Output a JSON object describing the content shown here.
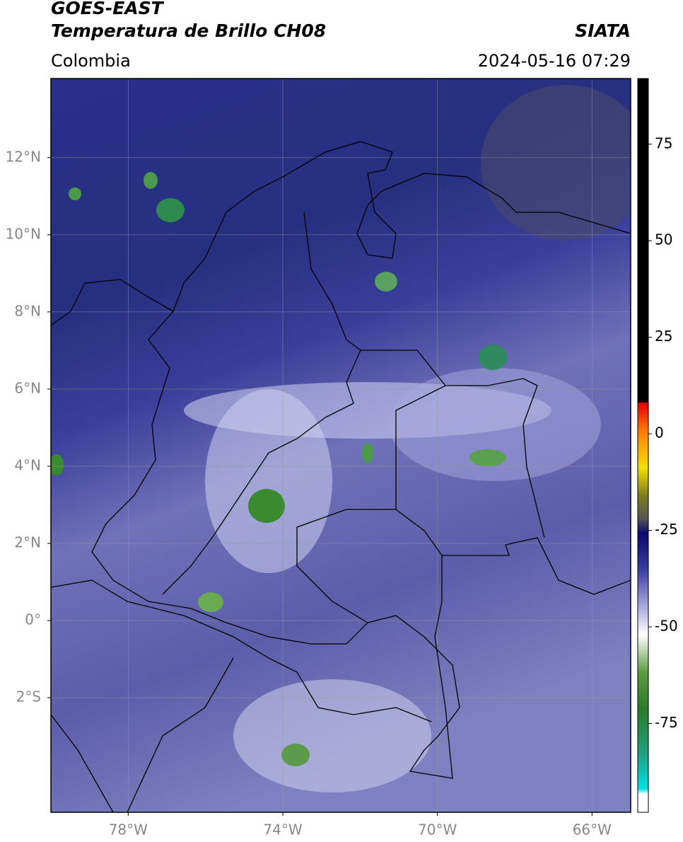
{
  "header": {
    "title_line1": "GOES-EAST",
    "title_line2": "Temperatura de Brillo CH08",
    "agency": "SIATA",
    "region": "Colombia",
    "timestamp": "2024-05-16 07:29"
  },
  "map": {
    "lat_lim": [
      -4.97,
      14.05
    ],
    "lon_lim": [
      -80,
      -65
    ],
    "lat_ticks": [
      {
        "value": 12,
        "label": "12°N"
      },
      {
        "value": 10,
        "label": "10°N"
      },
      {
        "value": 8,
        "label": "8°N"
      },
      {
        "value": 6,
        "label": "6°N"
      },
      {
        "value": 4,
        "label": "4°N"
      },
      {
        "value": 2,
        "label": "2°N"
      },
      {
        "value": 0,
        "label": "0°"
      },
      {
        "value": -2,
        "label": "2°S"
      }
    ],
    "lon_ticks": [
      {
        "value": -78,
        "label": "78°W"
      },
      {
        "value": -74,
        "label": "74°W"
      },
      {
        "value": -70,
        "label": "70°W"
      },
      {
        "value": -66,
        "label": "66°W"
      }
    ]
  },
  "colorbar": {
    "lim": [
      -98,
      92
    ],
    "ticks": [
      75,
      50,
      25,
      0,
      -25,
      -50,
      -75
    ]
  }
}
